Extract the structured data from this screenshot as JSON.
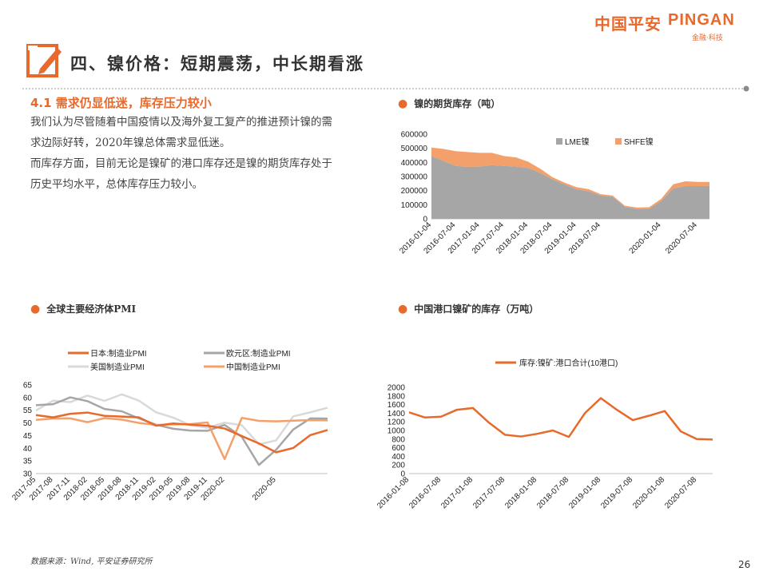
{
  "logo": {
    "cn": "中国平安",
    "en": "PINGAN",
    "sub": "金融·科技"
  },
  "title": "四、镍价格：短期震荡，中长期看涨",
  "section": {
    "heading": "4.1 需求仍显低迷，库存压力较小",
    "para1": "我们认为尽管随着中国疫情以及海外复工复产的推进预计镍的需求边际好转，2020年镍总体需求显低迷。",
    "para2": "而库存方面，目前无论是镍矿的港口库存还是镍的期货库存处于历史平均水平，总体库存压力较小。"
  },
  "footer": {
    "source": "数据来源：Wind,  平安证券研究所",
    "page": "26"
  },
  "colors": {
    "accent": "#e8692c",
    "lme": "#a6a6a6",
    "shfe": "#f4a06a"
  },
  "chart_data": [
    {
      "type": "area",
      "title": "镍的期货库存（吨）",
      "stacked": true,
      "x": [
        "2016-01-04",
        "2016-04-04",
        "2016-07-04",
        "2016-10-04",
        "2017-01-04",
        "2017-04-04",
        "2017-07-04",
        "2017-10-04",
        "2018-01-04",
        "2018-04-04",
        "2018-07-04",
        "2018-10-04",
        "2019-01-04",
        "2019-04-04",
        "2019-07-04",
        "2019-09-04",
        "2019-10-04",
        "2019-11-04",
        "2019-12-04",
        "2020-01-04",
        "2020-02-04",
        "2020-04-04",
        "2020-07-04",
        "2020-09-04"
      ],
      "x_ticks": [
        "2016-01-04",
        "2016-07-04",
        "2017-01-04",
        "2017-07-04",
        "2018-01-04",
        "2018-07-04",
        "2019-01-04",
        "2019-07-04",
        "2020-01-04",
        "2020-07-04"
      ],
      "series": [
        {
          "name": "LME镍",
          "values": [
            445000,
            410000,
            375000,
            368000,
            370000,
            380000,
            375000,
            370000,
            360000,
            325000,
            280000,
            245000,
            210000,
            195000,
            165000,
            155000,
            85000,
            70000,
            70000,
            125000,
            215000,
            232000,
            232000,
            233000
          ]
        },
        {
          "name": "SHFE镍",
          "values": [
            60000,
            85000,
            105000,
            105000,
            98000,
            88000,
            70000,
            65000,
            45000,
            30000,
            16000,
            12000,
            14000,
            15000,
            10000,
            9000,
            8000,
            10000,
            12000,
            16000,
            30000,
            34000,
            30000,
            28000
          ]
        }
      ],
      "ylim": [
        0,
        600000
      ],
      "yticks": [
        0,
        100000,
        200000,
        300000,
        400000,
        500000,
        600000
      ],
      "legend": "top-center"
    },
    {
      "type": "line",
      "title": "全球主要经济体PMI",
      "x": [
        "2017-05",
        "2017-08",
        "2017-11",
        "2018-02",
        "2018-05",
        "2018-08",
        "2018-11",
        "2019-02",
        "2019-05",
        "2019-08",
        "2019-11",
        "2020-02",
        "2020-03",
        "2020-04",
        "2020-05",
        "2020-06",
        "2020-07",
        "2020-08"
      ],
      "x_ticks": [
        "2017-05",
        "2017-08",
        "2017-11",
        "2018-02",
        "2018-05",
        "2018-08",
        "2018-11",
        "2019-02",
        "2019-05",
        "2019-08",
        "2019-11",
        "2020-02",
        "2020-05"
      ],
      "series": [
        {
          "name": "日本:制造业PMI",
          "values": [
            53.1,
            52.2,
            53.6,
            54.1,
            52.8,
            52.5,
            52.2,
            48.9,
            49.8,
            49.3,
            48.9,
            47.8,
            44.8,
            41.9,
            38.4,
            40.1,
            45.2,
            47.2
          ]
        },
        {
          "name": "欧元区:制造业PMI",
          "values": [
            57.0,
            57.4,
            60.1,
            58.6,
            55.5,
            54.6,
            51.8,
            49.3,
            47.7,
            47.0,
            46.9,
            49.2,
            44.5,
            33.4,
            39.4,
            47.4,
            51.8,
            51.7
          ]
        },
        {
          "name": "美国制造业PMI",
          "values": [
            54.9,
            58.8,
            58.2,
            60.8,
            58.7,
            61.3,
            58.8,
            54.2,
            52.1,
            49.1,
            48.1,
            50.1,
            49.1,
            41.5,
            43.1,
            52.6,
            54.2,
            56.0
          ]
        },
        {
          "name": "中国制造业PMI",
          "values": [
            51.2,
            51.7,
            51.8,
            50.3,
            51.9,
            51.3,
            50.0,
            49.2,
            49.4,
            49.5,
            50.2,
            35.7,
            52.0,
            50.8,
            50.6,
            50.9,
            51.1,
            51.0
          ]
        }
      ],
      "ylim": [
        30,
        65
      ],
      "yticks": [
        30,
        35,
        40,
        45,
        50,
        55,
        60,
        65
      ],
      "legend": "top"
    },
    {
      "type": "line",
      "title": "中国港口镍矿的库存（万吨）",
      "x": [
        "2016-01-08",
        "2016-04-08",
        "2016-07-08",
        "2016-10-08",
        "2017-01-08",
        "2017-04-08",
        "2017-07-08",
        "2017-10-08",
        "2018-01-08",
        "2018-04-08",
        "2018-07-08",
        "2018-10-08",
        "2019-01-08",
        "2019-04-08",
        "2019-07-08",
        "2019-10-08",
        "2020-01-08",
        "2020-04-08",
        "2020-07-08",
        "2020-09-08"
      ],
      "x_ticks": [
        "2016-01-08",
        "2016-07-08",
        "2017-01-08",
        "2017-07-08",
        "2018-01-08",
        "2018-07-08",
        "2019-01-08",
        "2019-07-08",
        "2020-01-08",
        "2020-07-08"
      ],
      "series": [
        {
          "name": "库存:镍矿:港口合计(10港口)",
          "values": [
            1420,
            1300,
            1320,
            1480,
            1520,
            1180,
            900,
            860,
            920,
            1000,
            850,
            1400,
            1750,
            1480,
            1240,
            1340,
            1450,
            980,
            800,
            790
          ]
        }
      ],
      "ylim": [
        0,
        2000
      ],
      "yticks": [
        0,
        200,
        400,
        600,
        800,
        1000,
        1200,
        1400,
        1600,
        1800,
        2000
      ],
      "legend": "top-center"
    }
  ]
}
